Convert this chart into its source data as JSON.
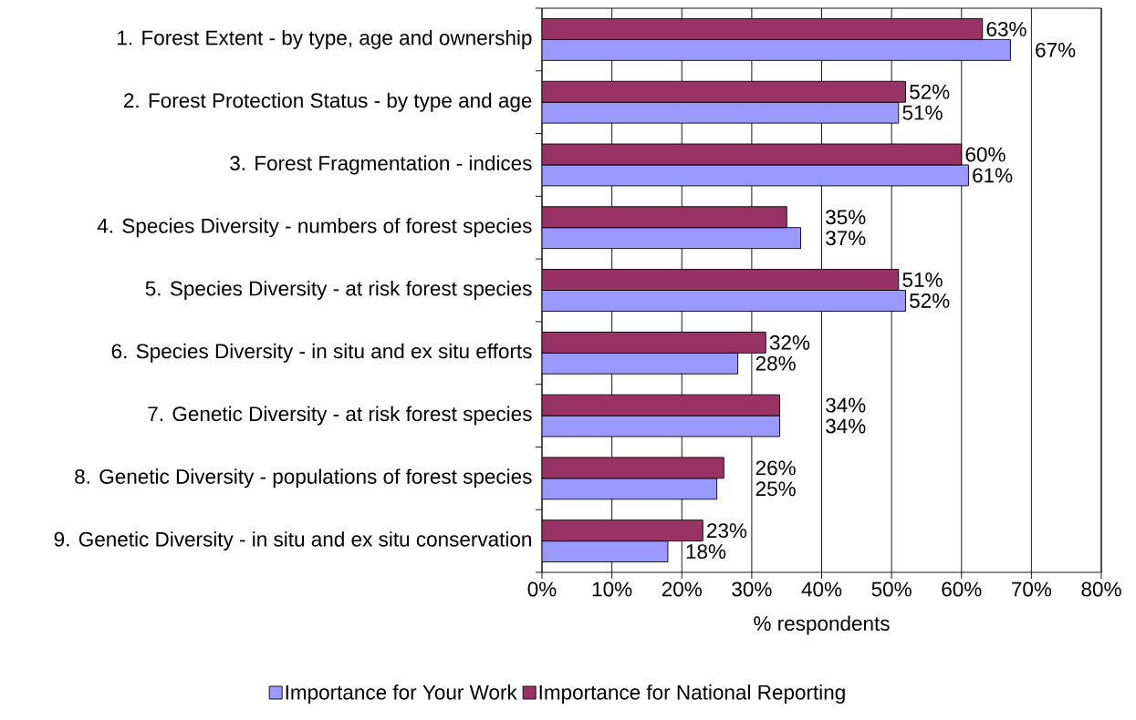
{
  "chart_data": {
    "type": "bar",
    "orientation": "horizontal",
    "categories": [
      "1. Forest Extent - by type, age and ownership",
      "2. Forest Protection Status - by type and age",
      "3. Forest Fragmentation - indices",
      "4. Species Diversity - numbers of forest species",
      "5. Species Diversity - at risk forest species",
      "6. Species Diversity - in situ and ex situ efforts",
      "7. Genetic Diversity - at risk forest species",
      "8. Genetic Diversity - populations of forest species",
      "9. Genetic Diversity - in situ and ex situ conservation"
    ],
    "series": [
      {
        "name": "Importance for Your Work",
        "color": "#9999ff",
        "values": [
          67,
          51,
          61,
          37,
          52,
          28,
          34,
          25,
          18
        ],
        "value_labels": [
          "67%",
          "51%",
          "61%",
          "37%",
          "52%",
          "28%",
          "34%",
          "25%",
          "18%"
        ]
      },
      {
        "name": "Importance for National Reporting",
        "color": "#993366",
        "values": [
          63,
          52,
          60,
          35,
          51,
          32,
          34,
          26,
          23
        ],
        "value_labels": [
          "63%",
          "52%",
          "60%",
          "35%",
          "51%",
          "32%",
          "34%",
          "26%",
          "23%"
        ]
      }
    ],
    "xlabel": "% respondents",
    "xlim": [
      0,
      80
    ],
    "xticks": [
      {
        "value": 0,
        "label": "0%"
      },
      {
        "value": 10,
        "label": "10%"
      },
      {
        "value": 20,
        "label": "20%"
      },
      {
        "value": 30,
        "label": "30%"
      },
      {
        "value": 40,
        "label": "40%"
      },
      {
        "value": 50,
        "label": "50%"
      },
      {
        "value": 60,
        "label": "60%"
      },
      {
        "value": 70,
        "label": "70%"
      },
      {
        "value": 80,
        "label": "80%"
      }
    ],
    "grid": "x",
    "legend": "bottom"
  }
}
